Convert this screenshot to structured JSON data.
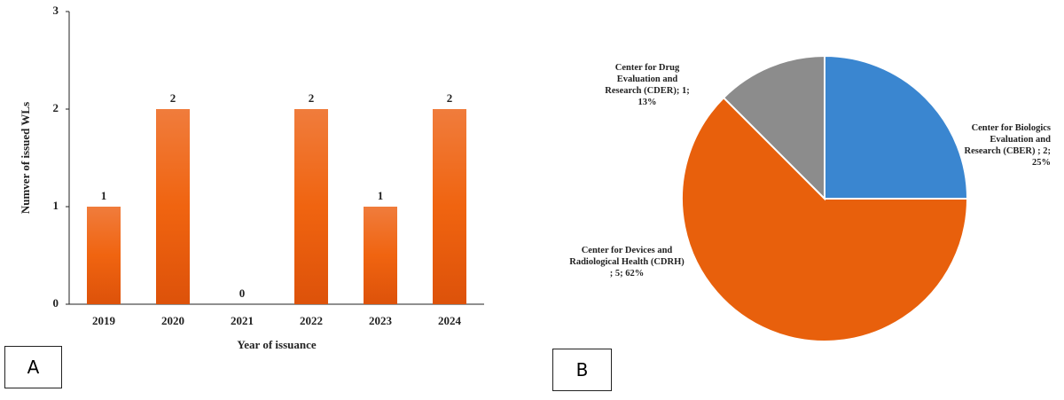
{
  "chart_data": [
    {
      "type": "bar",
      "panel_label": "A",
      "categories": [
        "2019",
        "2020",
        "2021",
        "2022",
        "2023",
        "2024"
      ],
      "values": [
        1,
        2,
        0,
        2,
        1,
        2
      ],
      "xlabel": "Year of issuance",
      "ylabel": "Numver of issued WLs",
      "ylim": [
        0,
        3
      ],
      "yticks": [
        0,
        1,
        2,
        3
      ],
      "color": "#ee6a1e"
    },
    {
      "type": "pie",
      "panel_label": "B",
      "categories": [
        "Center for Biologics Evaluation and Research (CBER) ; 2; 25%",
        "Center for Devices and Radiological Health (CDRH) ; 5; 62%",
        "Center for Drug Evaluation and Research (CDER); 1; 13%"
      ],
      "values": [
        2,
        5,
        1
      ],
      "colors": [
        "#3a86d0",
        "#e8600c",
        "#8c8c8c"
      ]
    }
  ]
}
